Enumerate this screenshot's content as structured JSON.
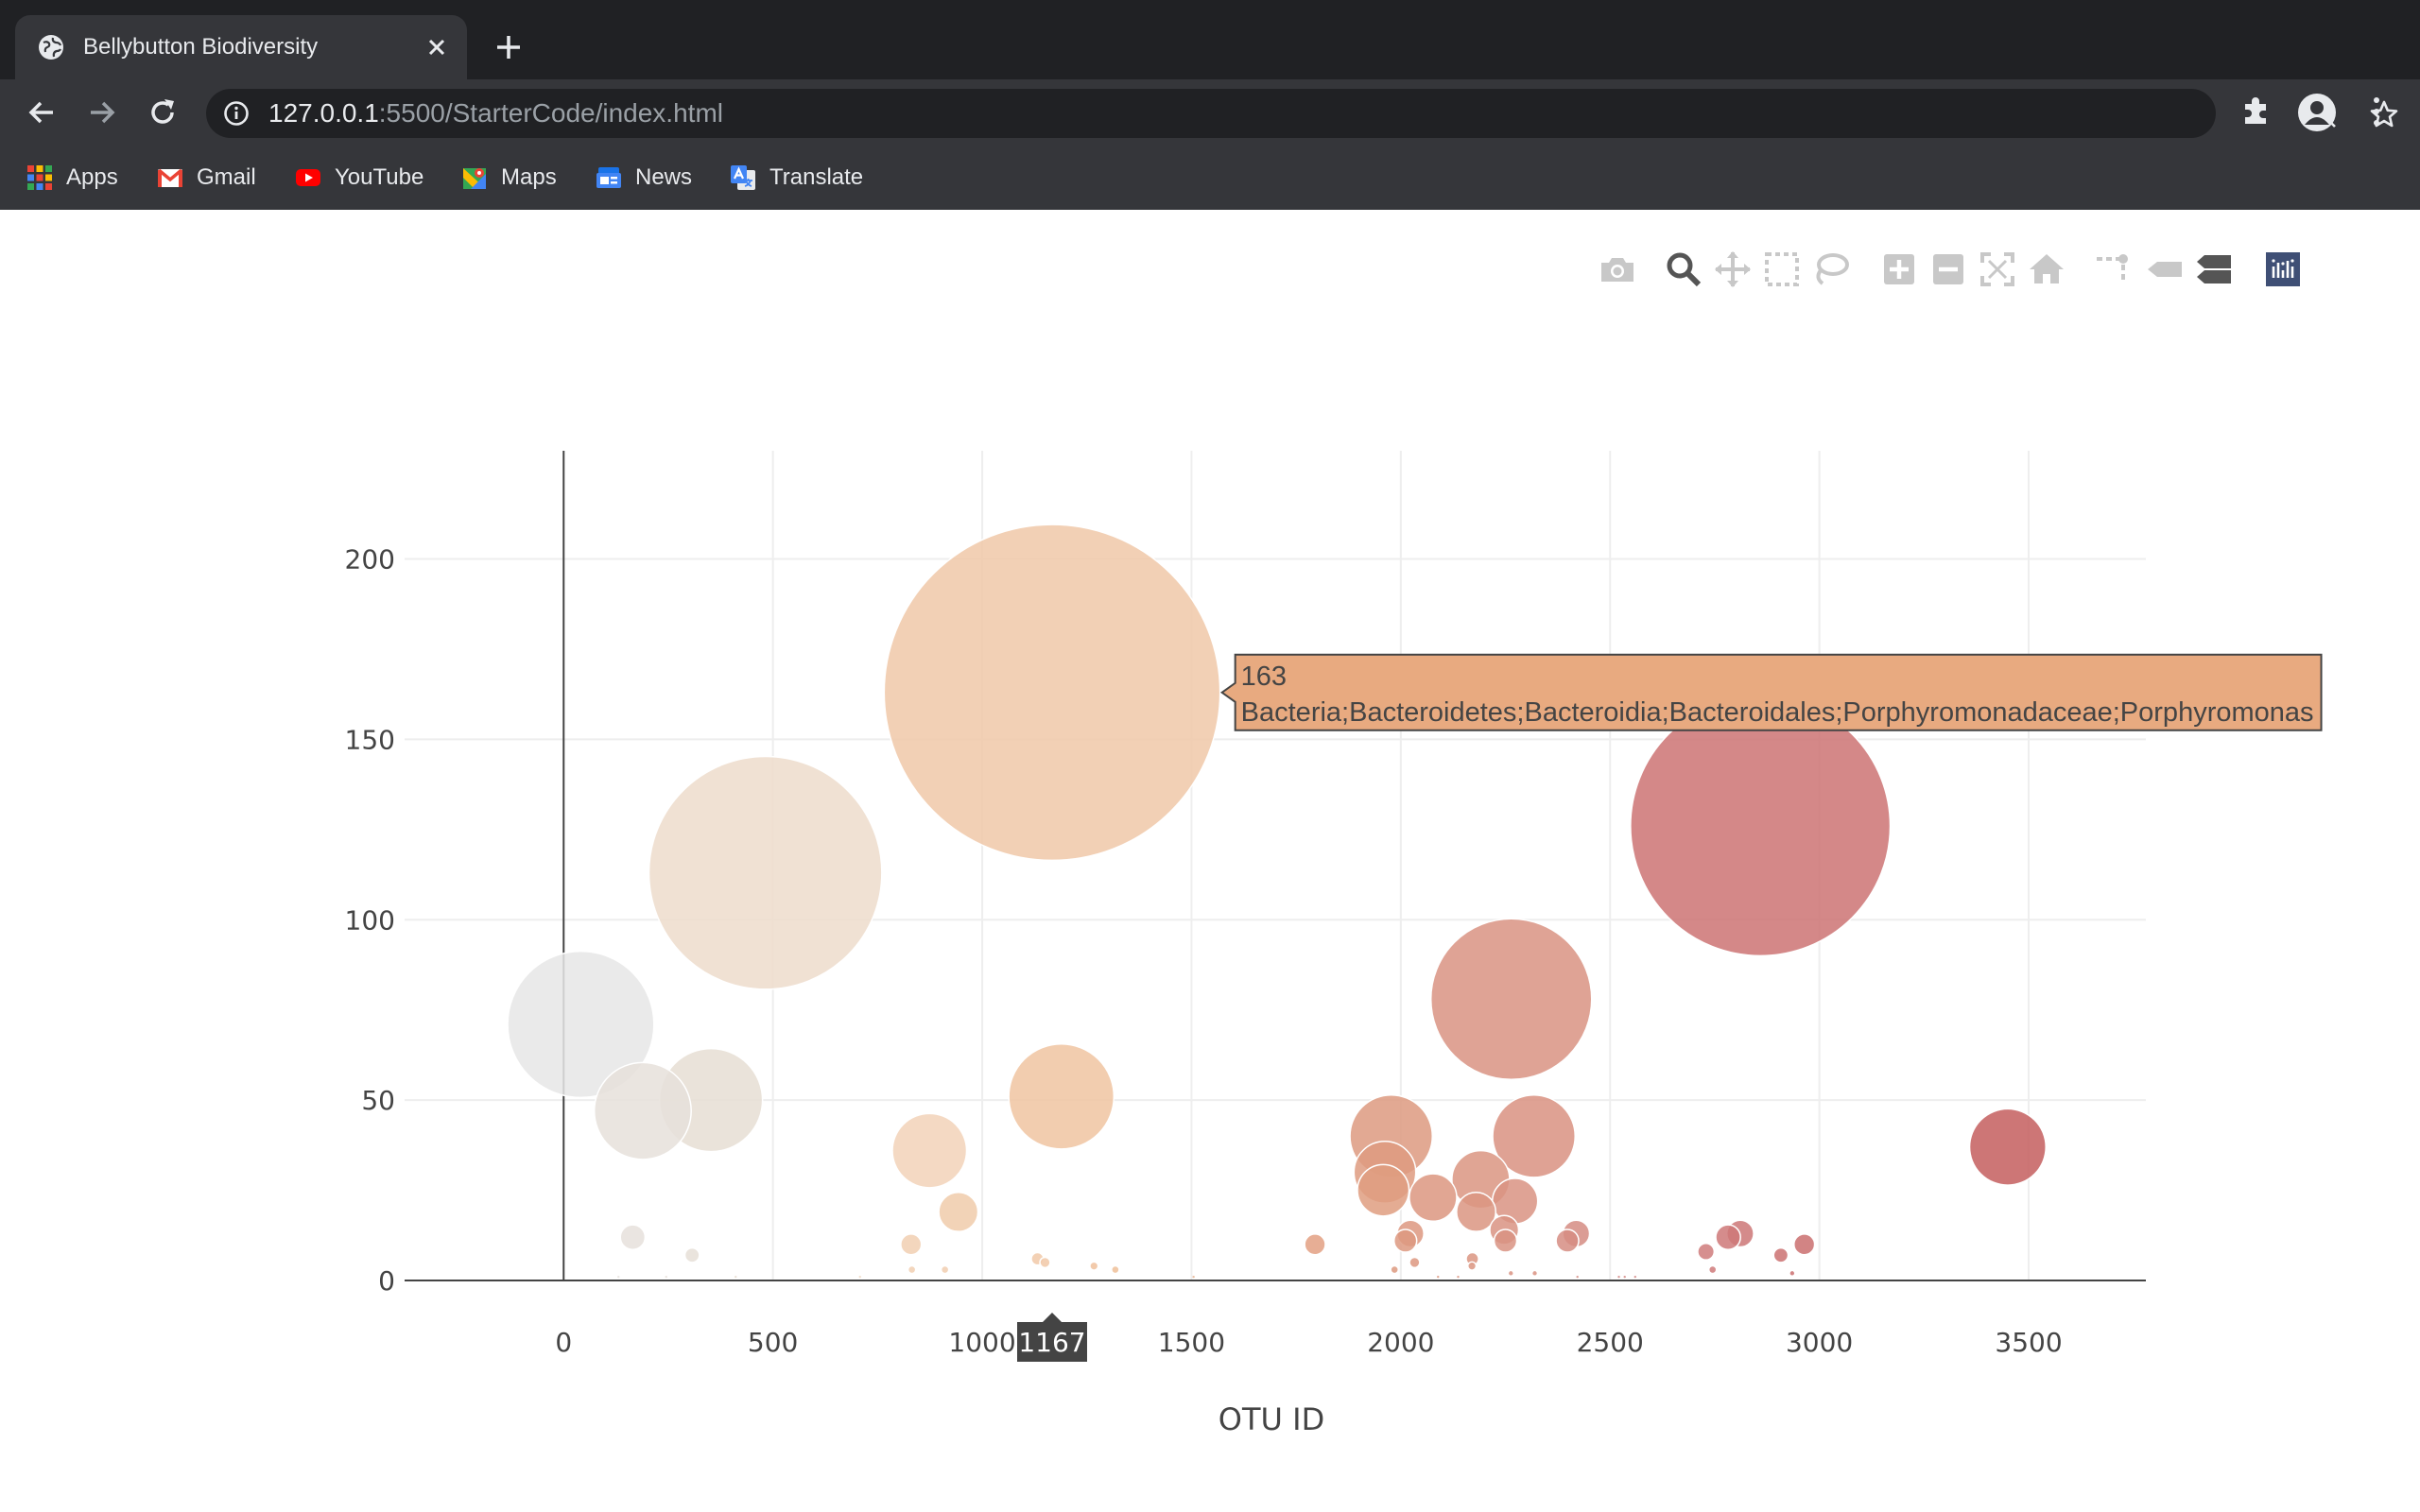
{
  "browser": {
    "tab_title": "Bellybutton Biodiversity",
    "url_host": "127.0.0.1",
    "url_path": ":5500/StarterCode/index.html",
    "bookmarks": [
      {
        "label": "Apps",
        "icon": "apps-grid-icon"
      },
      {
        "label": "Gmail",
        "icon": "gmail-icon"
      },
      {
        "label": "YouTube",
        "icon": "youtube-icon"
      },
      {
        "label": "Maps",
        "icon": "maps-icon"
      },
      {
        "label": "News",
        "icon": "news-icon"
      },
      {
        "label": "Translate",
        "icon": "translate-icon"
      }
    ],
    "colors": {
      "frame": "#202124",
      "toolbar": "#35363a",
      "text": "#e8eaed"
    }
  },
  "modebar": {
    "buttons": [
      "camera-icon",
      "zoom-icon",
      "pan-icon",
      "box-select-icon",
      "lasso-select-icon",
      "zoom-in-icon",
      "zoom-out-icon",
      "autoscale-icon",
      "reset-axes-icon",
      "spike-lines-icon",
      "hover-closest-icon",
      "hover-compare-icon",
      "plotly-logo-icon"
    ]
  },
  "chart_data": {
    "type": "scatter",
    "mode": "bubble",
    "title": "",
    "xlabel": "OTU ID",
    "ylabel": "",
    "xlim": [
      -380,
      3780
    ],
    "ylim": [
      0,
      230
    ],
    "xticks": [
      0,
      500,
      1000,
      1500,
      2000,
      2500,
      3000,
      3500
    ],
    "yticks": [
      0,
      50,
      100,
      150,
      200
    ],
    "grid": true,
    "marker_size_equals_value": true,
    "colorscale": "Earth",
    "points": [
      {
        "x": 41,
        "y": 71,
        "color": "#e6e6e6"
      },
      {
        "x": 482,
        "y": 113,
        "color": "#eddccb"
      },
      {
        "x": 352,
        "y": 50,
        "color": "#e6ded4"
      },
      {
        "x": 189,
        "y": 47,
        "color": "#e6e0da"
      },
      {
        "x": 165,
        "y": 12,
        "color": "#e6e1dc"
      },
      {
        "x": 307,
        "y": 7,
        "color": "#e6dfd7"
      },
      {
        "x": 1167,
        "y": 163,
        "color": "#f0c8a8"
      },
      {
        "x": 1189,
        "y": 51,
        "color": "#f0c4a1"
      },
      {
        "x": 874,
        "y": 36,
        "color": "#f2d2b8"
      },
      {
        "x": 943,
        "y": 19,
        "color": "#f0cbaa"
      },
      {
        "x": 830,
        "y": 10,
        "color": "#f1cfb2"
      },
      {
        "x": 1795,
        "y": 10,
        "color": "#e3a082"
      },
      {
        "x": 2264,
        "y": 78,
        "color": "#d99383"
      },
      {
        "x": 2859,
        "y": 126,
        "color": "#cc7373"
      },
      {
        "x": 3450,
        "y": 37,
        "color": "#c45e5e"
      },
      {
        "x": 1977,
        "y": 40,
        "color": "#dd9a80"
      },
      {
        "x": 2318,
        "y": 40,
        "color": "#d99281"
      },
      {
        "x": 1962,
        "y": 30,
        "color": "#de9b80"
      },
      {
        "x": 1958,
        "y": 25,
        "color": "#df9d80"
      },
      {
        "x": 2077,
        "y": 23,
        "color": "#dc9780"
      },
      {
        "x": 2191,
        "y": 28,
        "color": "#da9581"
      },
      {
        "x": 2273,
        "y": 22,
        "color": "#d99382"
      },
      {
        "x": 2180,
        "y": 19,
        "color": "#db9581"
      },
      {
        "x": 2247,
        "y": 14,
        "color": "#d99382"
      },
      {
        "x": 2250,
        "y": 11,
        "color": "#d99382"
      },
      {
        "x": 2419,
        "y": 13,
        "color": "#d58c83"
      },
      {
        "x": 2398,
        "y": 11,
        "color": "#d68d83"
      },
      {
        "x": 2023,
        "y": 13,
        "color": "#dd9880"
      },
      {
        "x": 2011,
        "y": 11,
        "color": "#dd9980"
      },
      {
        "x": 2811,
        "y": 13,
        "color": "#cd7777"
      },
      {
        "x": 2782,
        "y": 12,
        "color": "#ce7878"
      },
      {
        "x": 2729,
        "y": 8,
        "color": "#cf7b7b"
      },
      {
        "x": 2964,
        "y": 10,
        "color": "#ca6e6e"
      },
      {
        "x": 2908,
        "y": 7,
        "color": "#cb7171"
      },
      {
        "x": 1132,
        "y": 6,
        "color": "#f1c9a8"
      },
      {
        "x": 1150,
        "y": 5,
        "color": "#f1c8a7"
      },
      {
        "x": 2171,
        "y": 6,
        "color": "#db9581"
      },
      {
        "x": 2033,
        "y": 5,
        "color": "#dd9880"
      },
      {
        "x": 1267,
        "y": 4,
        "color": "#f0c19c"
      },
      {
        "x": 1318,
        "y": 3,
        "color": "#efbf99"
      },
      {
        "x": 911,
        "y": 3,
        "color": "#f1ceb0"
      },
      {
        "x": 832,
        "y": 3,
        "color": "#f1cfb2"
      },
      {
        "x": 1985,
        "y": 3,
        "color": "#dd9a80"
      },
      {
        "x": 2745,
        "y": 3,
        "color": "#cf7a7a"
      },
      {
        "x": 2170,
        "y": 4,
        "color": "#db9581"
      },
      {
        "x": 2935,
        "y": 2,
        "color": "#cb7070"
      },
      {
        "x": 2263,
        "y": 2,
        "color": "#d99382"
      },
      {
        "x": 2320,
        "y": 2,
        "color": "#d99281"
      },
      {
        "x": 2521,
        "y": 1,
        "color": "#d38784"
      },
      {
        "x": 2535,
        "y": 1,
        "color": "#d38784"
      },
      {
        "x": 2560,
        "y": 1,
        "color": "#d28684"
      },
      {
        "x": 1505,
        "y": 1,
        "color": "#e8b393"
      },
      {
        "x": 708,
        "y": 1,
        "color": "#eed8c3"
      },
      {
        "x": 131,
        "y": 1,
        "color": "#e6e2de"
      },
      {
        "x": 245,
        "y": 1,
        "color": "#e6e0da"
      },
      {
        "x": 411,
        "y": 1,
        "color": "#e8dccf"
      },
      {
        "x": 2089,
        "y": 1,
        "color": "#dc9680"
      },
      {
        "x": 2137,
        "y": 1,
        "color": "#db9581"
      },
      {
        "x": 2422,
        "y": 1,
        "color": "#d58c83"
      }
    ],
    "hover": {
      "point_index": 6,
      "lines": [
        "163",
        "Bacteria;Bacteroidetes;Bacteroidia;Bacteroidales;Porphyromonadaceae;Porphyromonas"
      ],
      "bg_color": "#e8aa80",
      "x_spike_label": "1167",
      "spike_bg_color": "#444444"
    }
  }
}
